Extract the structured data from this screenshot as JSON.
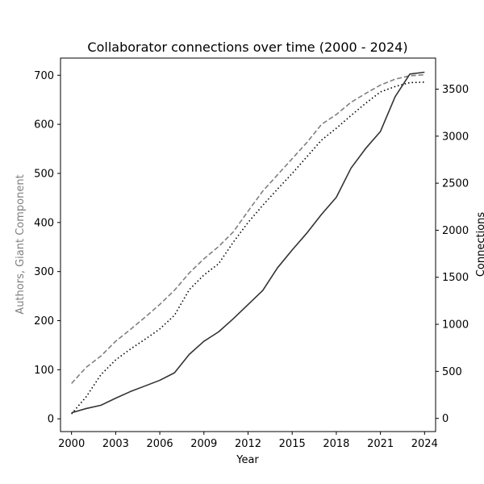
{
  "chart_data": {
    "type": "line",
    "title": "Collaborator connections over time (2000 - 2024)",
    "xlabel": "Year",
    "ylabel_left": "Authors, Giant Component",
    "ylabel_right": "Connections",
    "xlim": [
      1999.25,
      2024.75
    ],
    "ylim_left": [
      -26,
      735
    ],
    "ylim_right": [
      -140,
      3830
    ],
    "x_ticks": [
      2000,
      2003,
      2006,
      2009,
      2012,
      2015,
      2018,
      2021,
      2024
    ],
    "y_ticks_left": [
      0,
      100,
      200,
      300,
      400,
      500,
      600,
      700
    ],
    "y_ticks_right": [
      0,
      500,
      1000,
      1500,
      2000,
      2500,
      3000,
      3500
    ],
    "colors": {
      "authors_total": "#808080",
      "giant_component": "#000000",
      "connections": "#333333"
    },
    "x": [
      2000,
      2001,
      2002,
      2003,
      2004,
      2005,
      2006,
      2007,
      2008,
      2009,
      2010,
      2011,
      2012,
      2013,
      2014,
      2015,
      2016,
      2017,
      2018,
      2019,
      2020,
      2021,
      2022,
      2023,
      2024
    ],
    "series": [
      {
        "axis": "left",
        "style": "dashed",
        "values": [
          72,
          105,
          128,
          158,
          182,
          207,
          233,
          262,
          297,
          326,
          351,
          381,
          423,
          464,
          497,
          530,
          563,
          600,
          620,
          645,
          663,
          680,
          692,
          699,
          701
        ]
      },
      {
        "axis": "left",
        "style": "dotted",
        "values": [
          10,
          45,
          90,
          120,
          142,
          162,
          183,
          211,
          263,
          293,
          316,
          360,
          400,
          435,
          468,
          500,
          534,
          568,
          592,
          618,
          643,
          666,
          677,
          685,
          686
        ]
      },
      {
        "axis": "right",
        "style": "solid",
        "values": [
          60,
          105,
          140,
          215,
          285,
          345,
          405,
          485,
          680,
          820,
          920,
          1060,
          1210,
          1360,
          1600,
          1790,
          1970,
          2170,
          2350,
          2660,
          2870,
          3050,
          3420,
          3660,
          3680
        ]
      }
    ]
  }
}
